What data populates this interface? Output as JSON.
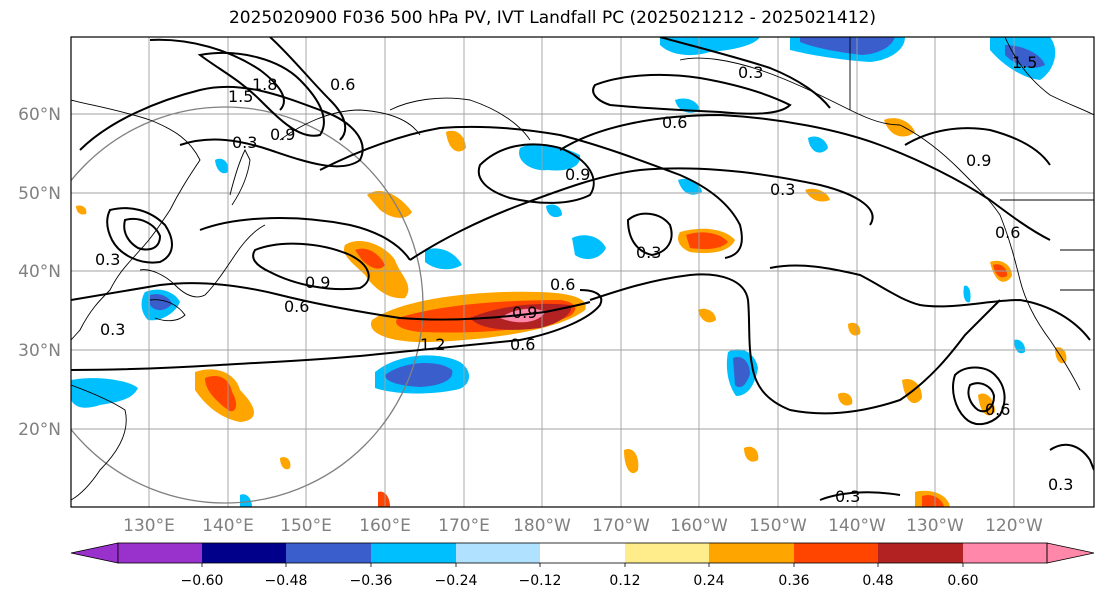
{
  "title": "2025020900 F036 500 hPa PV, IVT Landfall PC (2025021212 - 2025021412)",
  "map": {
    "lat_labels": [
      "60°N",
      "50°N",
      "40°N",
      "30°N",
      "20°N"
    ],
    "lon_labels": [
      "130°E",
      "140°E",
      "150°E",
      "160°E",
      "170°E",
      "180°W",
      "170°W",
      "160°W",
      "150°W",
      "140°W",
      "130°W",
      "120°W"
    ],
    "contour_labels": [
      "1.8",
      "1.5",
      "0.6",
      "0.3",
      "0.9",
      "0.6",
      "0.3",
      "0.9",
      "0.6",
      "0.3",
      "0.9",
      "0.6",
      "0.9",
      "0.6",
      "0.3",
      "0.6",
      "0.3",
      "0.3",
      "0.6",
      "0.3",
      "0.9",
      "1.2",
      "0.3",
      "1.5"
    ]
  },
  "colorbar": {
    "colors": [
      "#9932cc",
      "#00008b",
      "#3a5fcd",
      "#00bfff",
      "#b0e2ff",
      "#ffffff",
      "#ffec8b",
      "#ffa500",
      "#ff4500",
      "#b22222",
      "#ff88aa"
    ],
    "tick_labels": [
      "−0.60",
      "−0.48",
      "−0.36",
      "−0.24",
      "−0.12",
      "0.12",
      "0.24",
      "0.36",
      "0.48",
      "0.60"
    ]
  }
}
